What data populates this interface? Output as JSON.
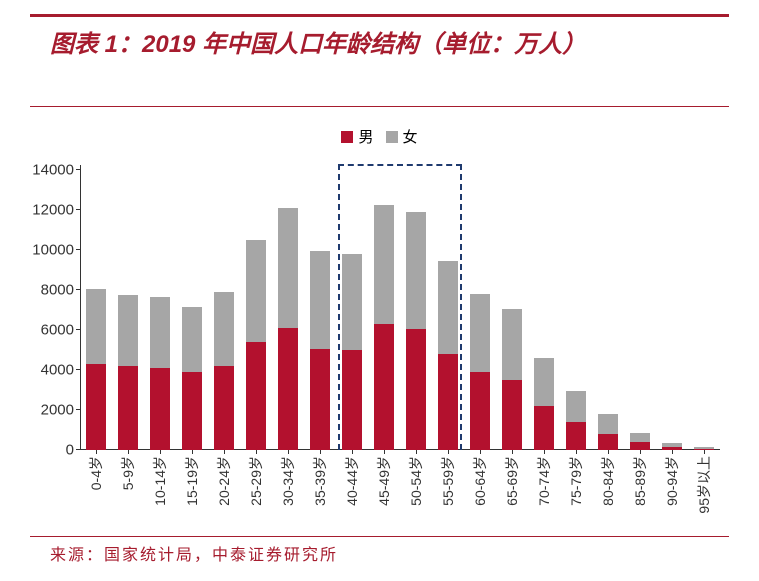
{
  "title": {
    "text": "图表 1：2019 年中国人口年龄结构（单位：万人）",
    "fontsize_pt": 24,
    "color": "#a61c2e"
  },
  "rules": {
    "color": "#a61c2e"
  },
  "legend": {
    "items": [
      {
        "label": "男",
        "color": "#b3112e"
      },
      {
        "label": "女",
        "color": "#a6a6a6"
      }
    ],
    "fontsize_pt": 15
  },
  "chart": {
    "type": "stacked-bar",
    "ylim_max": 14000,
    "ytick_step": 2000,
    "yticks": [
      0,
      2000,
      4000,
      6000,
      8000,
      10000,
      12000,
      14000
    ],
    "label_fontsize_pt": 14,
    "bar_width_ratio": 0.62,
    "categories": [
      "0-4岁",
      "5-9岁",
      "10-14岁",
      "15-19岁",
      "20-24岁",
      "25-29岁",
      "30-34岁",
      "35-39岁",
      "40-44岁",
      "45-49岁",
      "50-54岁",
      "55-59岁",
      "60-64岁",
      "65-69岁",
      "70-74岁",
      "75-79岁",
      "80-84岁",
      "85-89岁",
      "90-94岁",
      "95岁以上"
    ],
    "series_male": [
      4300,
      4200,
      4100,
      3900,
      4200,
      5400,
      6100,
      5050,
      5000,
      6300,
      6050,
      4800,
      3900,
      3500,
      2200,
      1400,
      800,
      400,
      150,
      60
    ],
    "series_female": [
      3750,
      3550,
      3550,
      3250,
      3700,
      5100,
      6000,
      4900,
      4800,
      5950,
      5850,
      4650,
      3900,
      3550,
      2400,
      1550,
      1000,
      450,
      200,
      80
    ],
    "male_color": "#b3112e",
    "female_color": "#a6a6a6",
    "plot_background": "#ffffff",
    "highlight": {
      "start_index": 8,
      "end_index": 11,
      "color": "#1f3a6e"
    }
  },
  "source": {
    "text": "来源：国家统计局，中泰证券研究所",
    "fontsize_pt": 16,
    "color": "#a61c2e"
  }
}
